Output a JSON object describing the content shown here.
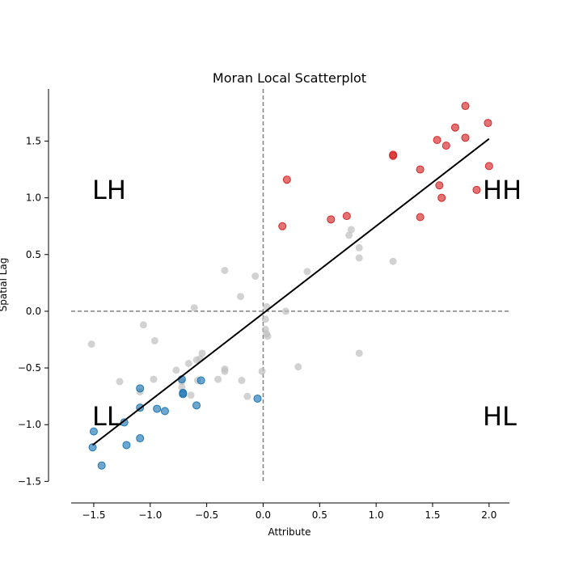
{
  "chart_data": {
    "type": "scatter",
    "title": "Moran Local Scatterplot",
    "xlabel": "Attribute",
    "ylabel": "Spatial Lag",
    "xlim": [
      -1.7,
      2.18
    ],
    "ylim": [
      -1.69,
      1.96
    ],
    "xticks": [
      -1.5,
      -1.0,
      -0.5,
      0.0,
      0.5,
      1.0,
      1.5,
      2.0
    ],
    "xtick_labels": [
      "−1.5",
      "−1.0",
      "−0.5",
      "0.0",
      "0.5",
      "1.0",
      "1.5",
      "2.0"
    ],
    "yticks": [
      -1.5,
      -1.0,
      -0.5,
      0.0,
      0.5,
      1.0,
      1.5
    ],
    "ytick_labels": [
      "−1.5",
      "−1.0",
      "−0.5",
      "0.0",
      "0.5",
      "1.0",
      "1.5"
    ],
    "grid": false,
    "quadrant_labels": {
      "LH": "LH",
      "HH": "HH",
      "LL": "LL",
      "HL": "HL"
    },
    "colors": {
      "HH": "#d62728",
      "LL": "#1f77b4",
      "ns": "#bfbfbf",
      "fit": "#000000",
      "reference": "#808080"
    },
    "regression_line": {
      "x": [
        -1.51,
        2.0
      ],
      "y": [
        -1.18,
        1.52
      ]
    },
    "series": [
      {
        "cluster": "HH",
        "points": [
          [
            1.79,
            1.81
          ],
          [
            1.99,
            1.66
          ],
          [
            1.7,
            1.62
          ],
          [
            1.54,
            1.51
          ],
          [
            1.79,
            1.53
          ],
          [
            1.62,
            1.46
          ],
          [
            1.15,
            1.38
          ],
          [
            1.15,
            1.37
          ],
          [
            2.0,
            1.28
          ],
          [
            1.39,
            1.25
          ],
          [
            0.21,
            1.16
          ],
          [
            1.56,
            1.11
          ],
          [
            1.89,
            1.07
          ],
          [
            1.58,
            1.0
          ],
          [
            0.74,
            0.84
          ],
          [
            1.39,
            0.83
          ],
          [
            0.6,
            0.81
          ],
          [
            0.17,
            0.75
          ]
        ]
      },
      {
        "cluster": "LL",
        "points": [
          [
            -0.72,
            -0.6
          ],
          [
            -0.55,
            -0.61
          ],
          [
            -1.09,
            -0.68
          ],
          [
            -0.71,
            -0.72
          ],
          [
            -0.71,
            -0.73
          ],
          [
            -0.05,
            -0.77
          ],
          [
            -0.59,
            -0.83
          ],
          [
            -1.09,
            -0.85
          ],
          [
            -0.94,
            -0.86
          ],
          [
            -0.87,
            -0.88
          ],
          [
            -1.23,
            -0.98
          ],
          [
            -1.5,
            -1.06
          ],
          [
            -1.09,
            -1.12
          ],
          [
            -1.21,
            -1.18
          ],
          [
            -1.51,
            -1.2
          ],
          [
            -1.43,
            -1.36
          ]
        ]
      },
      {
        "cluster": "ns",
        "points": [
          [
            0.78,
            0.72
          ],
          [
            0.76,
            0.67
          ],
          [
            0.85,
            0.56
          ],
          [
            0.85,
            0.47
          ],
          [
            1.15,
            0.44
          ],
          [
            -0.34,
            0.36
          ],
          [
            0.39,
            0.35
          ],
          [
            -0.07,
            0.31
          ],
          [
            -0.2,
            0.13
          ],
          [
            -0.61,
            0.03
          ],
          [
            0.03,
            0.04
          ],
          [
            0.2,
            0.0
          ],
          [
            0.02,
            -0.07
          ],
          [
            -1.06,
            -0.12
          ],
          [
            0.02,
            -0.16
          ],
          [
            0.03,
            -0.2
          ],
          [
            0.04,
            -0.22
          ],
          [
            -0.96,
            -0.26
          ],
          [
            -1.52,
            -0.29
          ],
          [
            0.85,
            -0.37
          ],
          [
            -0.54,
            -0.37
          ],
          [
            -0.56,
            -0.42
          ],
          [
            -0.59,
            -0.43
          ],
          [
            -0.66,
            -0.46
          ],
          [
            0.31,
            -0.49
          ],
          [
            -0.34,
            -0.51
          ],
          [
            -0.34,
            -0.53
          ],
          [
            -0.77,
            -0.52
          ],
          [
            -0.01,
            -0.53
          ],
          [
            -0.97,
            -0.6
          ],
          [
            -0.4,
            -0.6
          ],
          [
            -0.19,
            -0.61
          ],
          [
            -0.58,
            -0.61
          ],
          [
            -0.72,
            -0.62
          ],
          [
            -1.27,
            -0.62
          ],
          [
            -0.72,
            -0.67
          ],
          [
            -1.09,
            -0.71
          ],
          [
            -0.64,
            -0.74
          ],
          [
            -0.14,
            -0.75
          ]
        ]
      }
    ]
  }
}
